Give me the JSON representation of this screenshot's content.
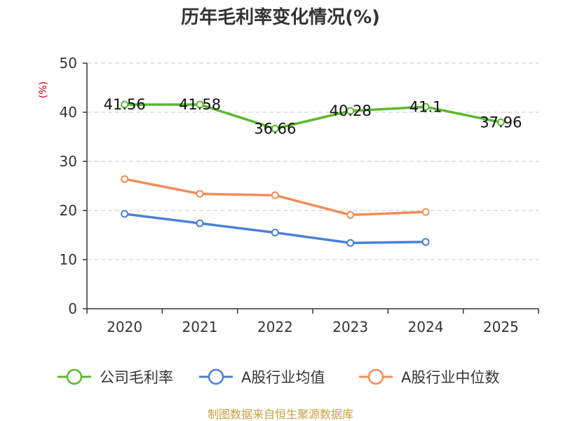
{
  "chart_data": {
    "type": "line",
    "title": "历年毛利率变化情况(%)",
    "ylabel": "(%)",
    "xlabel": "",
    "ylim": [
      0,
      50
    ],
    "yticks": [
      0,
      10,
      20,
      30,
      40,
      50
    ],
    "grid": true,
    "legend_position": "bottom",
    "categories": [
      "2020",
      "2021",
      "2022",
      "2023",
      "2024",
      "2025"
    ],
    "series": [
      {
        "name": "公司毛利率",
        "color": "#5cb82e",
        "values": [
          41.56,
          41.58,
          36.66,
          40.28,
          41.1,
          37.96
        ],
        "labels": [
          "41.56",
          "41.58",
          "36.66",
          "40.28",
          "41.1",
          "37.96"
        ]
      },
      {
        "name": "A股行业均值",
        "color": "#4a7fd8",
        "values": [
          19.3,
          17.4,
          15.5,
          13.4,
          13.6,
          null
        ],
        "labels": null
      },
      {
        "name": "A股行业中位数",
        "color": "#f28c5a",
        "values": [
          26.4,
          23.4,
          23.1,
          19.1,
          19.7,
          null
        ],
        "labels": null
      }
    ]
  },
  "footer": {
    "source": "制图数据来自恒生聚源数据库"
  }
}
